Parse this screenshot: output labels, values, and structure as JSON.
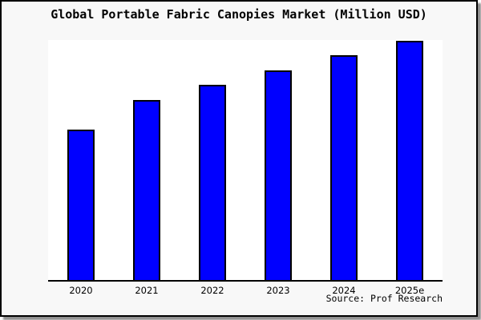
{
  "window": {
    "background": "#f8f8f8",
    "border_color": "#000000",
    "shadow_color": "#8f8f8f"
  },
  "chart_data": {
    "type": "bar",
    "title": "Global Portable Fabric Canopies Market (Million USD)",
    "categories": [
      "2020",
      "2021",
      "2022",
      "2023",
      "2024",
      "2025e"
    ],
    "values": [
      62.9,
      75.3,
      81.6,
      87.6,
      94.0,
      100
    ],
    "values_unit": "relative height, percent of tallest bar (no numeric y-axis shown in figure)",
    "xlabel": "",
    "ylabel": "",
    "ylim": null,
    "grid": false,
    "legend": null,
    "bar_color": "#0000ff",
    "bar_outline_color": "#000000",
    "plot_background": "#ffffff",
    "source": "Source: Prof Research"
  }
}
